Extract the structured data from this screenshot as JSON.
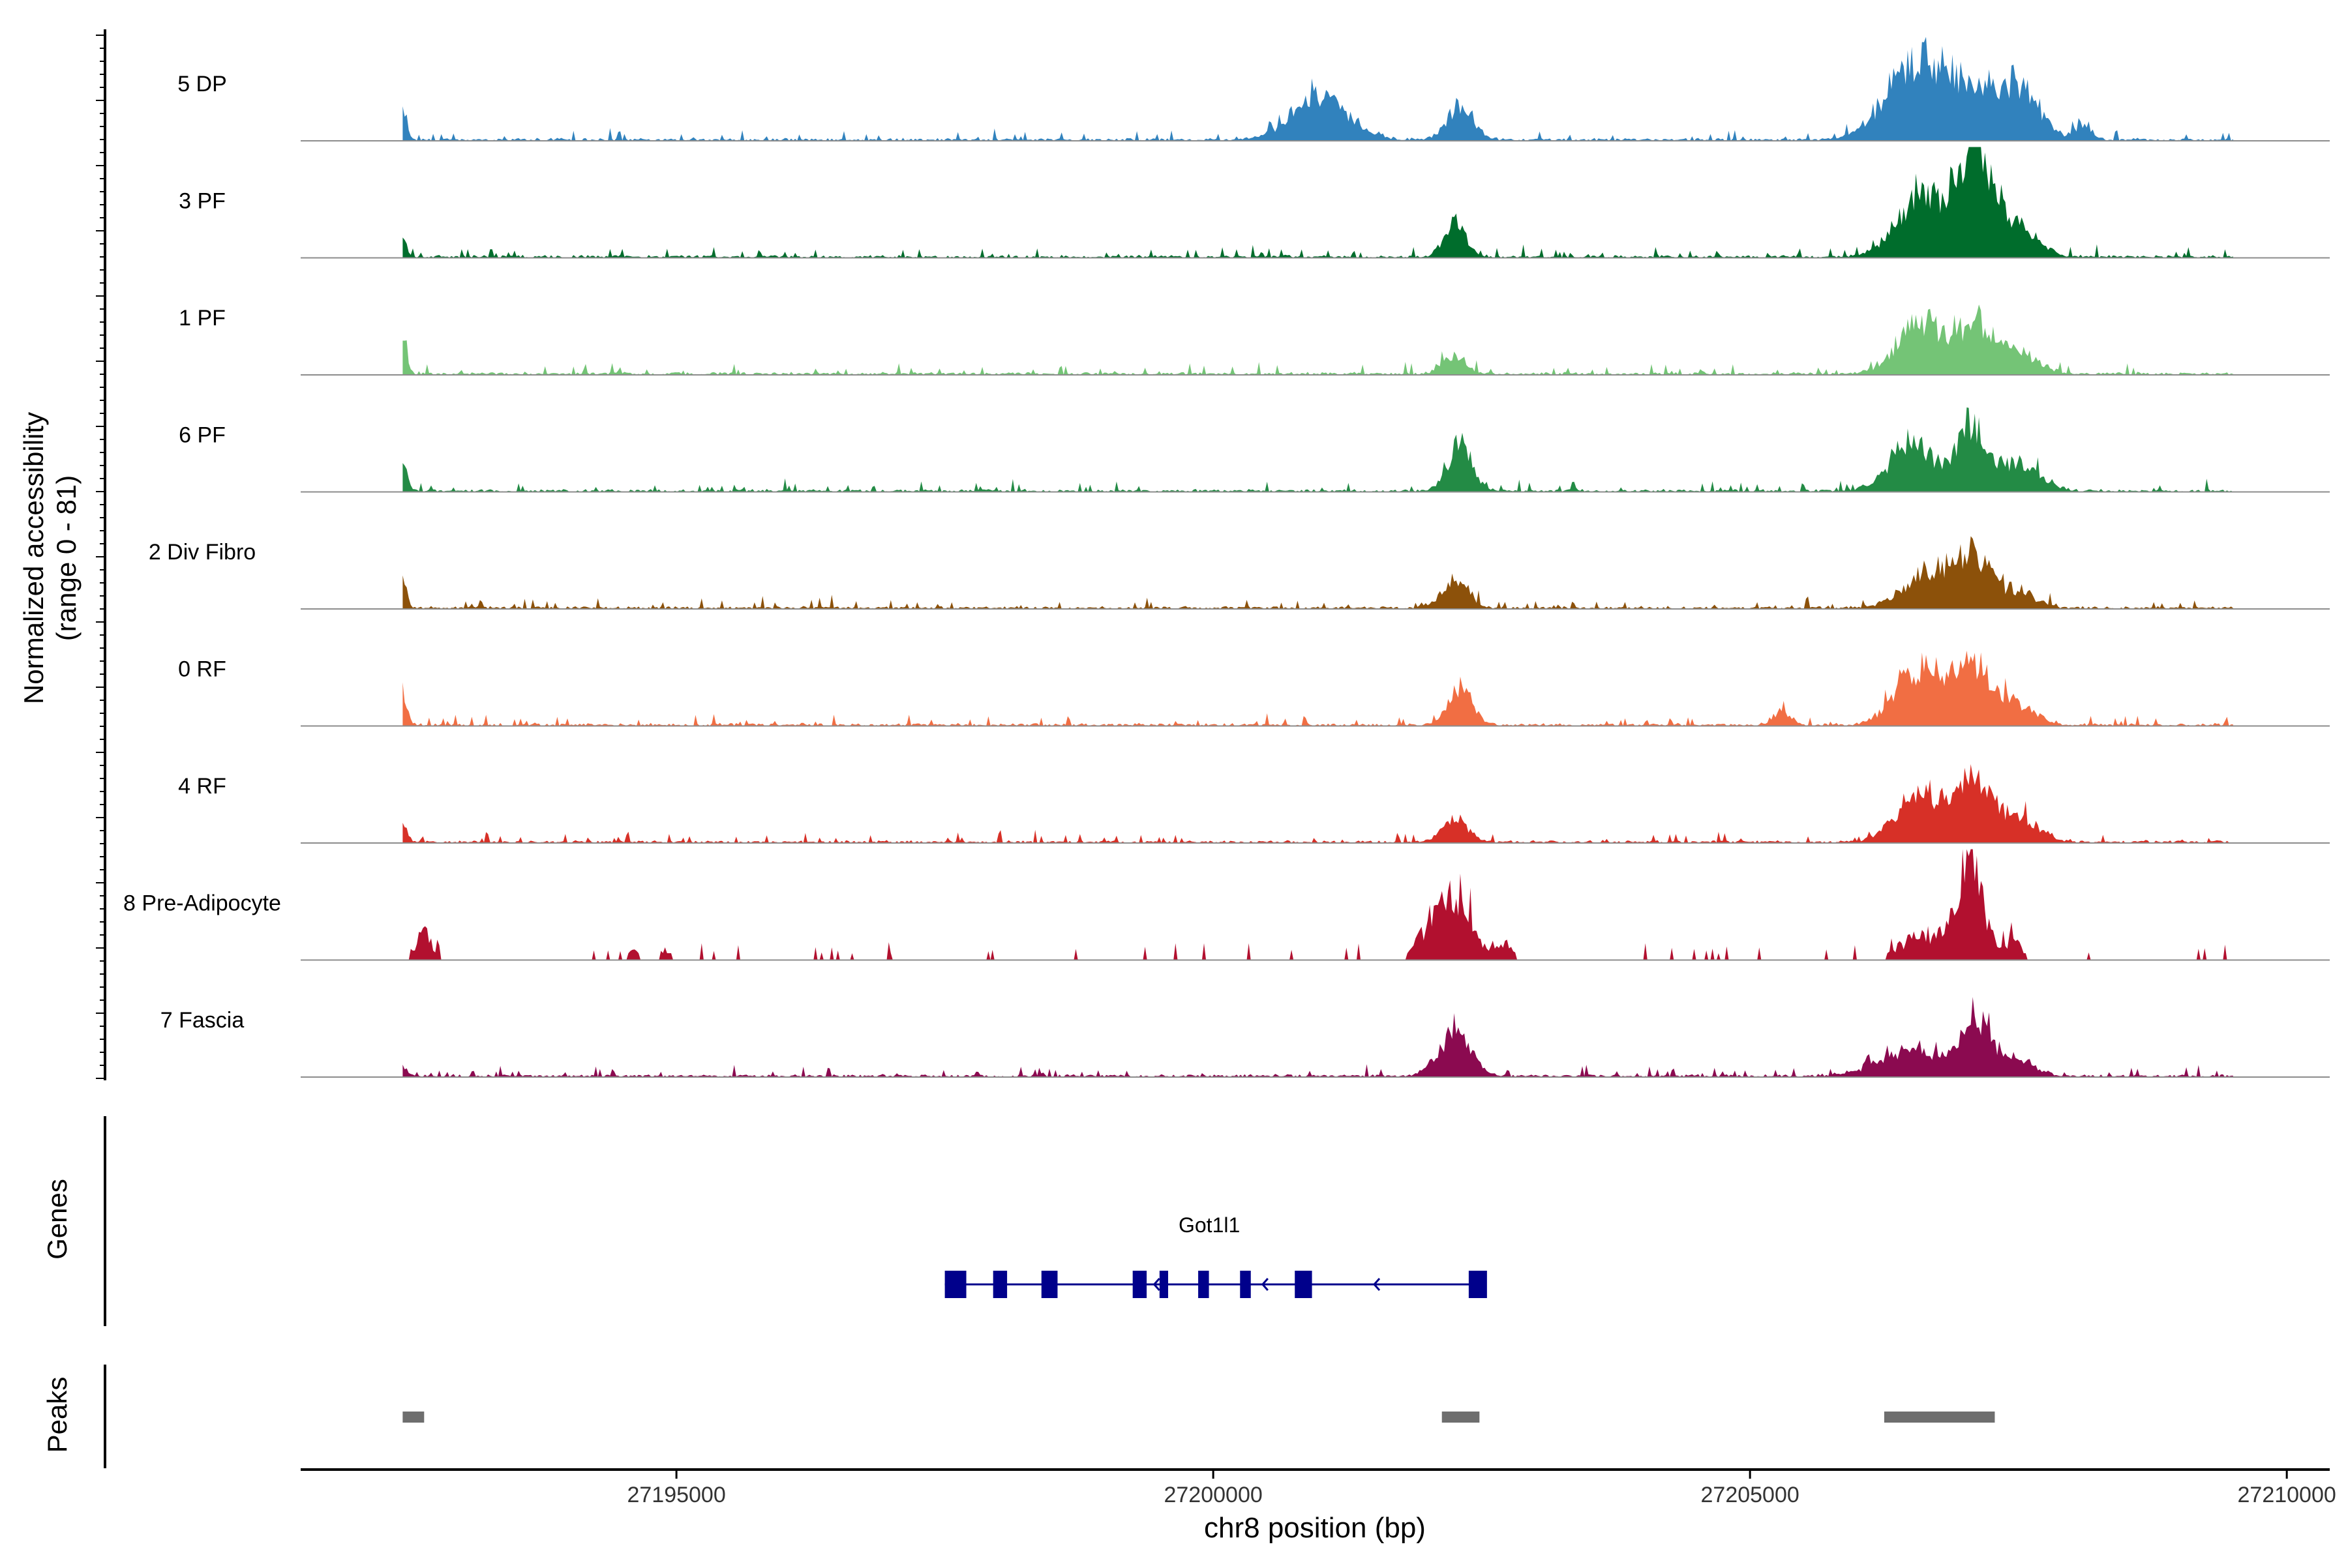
{
  "chart_data": {
    "type": "area",
    "title": "",
    "xlabel": "chr8 position (bp)",
    "ylabel_line1": "Normalized accessibility",
    "ylabel_line2": "(range 0 - 81)",
    "ylim": [
      0,
      81
    ],
    "xlim": [
      27191500,
      27210400
    ],
    "x_ticks": [
      27195000,
      27200000,
      27205000,
      27210000
    ],
    "x_tick_labels": [
      "27195000",
      "27200000",
      "27205000",
      "27210000"
    ],
    "genes_label": "Genes",
    "peaks_label": "Peaks",
    "tracks": [
      {
        "name": "5 DP",
        "color": "#3182bd",
        "sharp": false,
        "peaks": [
          [
            27192450,
            22,
            40
          ],
          [
            27201000,
            32,
            260
          ],
          [
            27202300,
            25,
            120
          ],
          [
            27206500,
            48,
            260
          ],
          [
            27207000,
            36,
            300
          ],
          [
            27207500,
            32,
            200
          ],
          [
            27208100,
            12,
            70
          ]
        ]
      },
      {
        "name": "3 PF",
        "color": "#006d2c",
        "sharp": false,
        "peaks": [
          [
            27192450,
            12,
            40
          ],
          [
            27202250,
            25,
            100
          ],
          [
            27206600,
            48,
            220
          ],
          [
            27207100,
            72,
            160
          ],
          [
            27207500,
            22,
            180
          ]
        ]
      },
      {
        "name": "1 PF",
        "color": "#74c476",
        "sharp": false,
        "peaks": [
          [
            27192450,
            24,
            40
          ],
          [
            27202250,
            14,
            100
          ],
          [
            27206600,
            38,
            220
          ],
          [
            27207100,
            35,
            150
          ],
          [
            27207500,
            16,
            180
          ]
        ]
      },
      {
        "name": "6 PF",
        "color": "#238b45",
        "sharp": false,
        "peaks": [
          [
            27192450,
            20,
            40
          ],
          [
            27202300,
            35,
            110
          ],
          [
            27206500,
            35,
            200
          ],
          [
            27207050,
            45,
            140
          ],
          [
            27207500,
            20,
            200
          ]
        ]
      },
      {
        "name": "2 Div Fibro",
        "color": "#8c510a",
        "sharp": false,
        "peaks": [
          [
            27192450,
            20,
            40
          ],
          [
            27202250,
            22,
            120
          ],
          [
            27206700,
            28,
            240
          ],
          [
            27207100,
            32,
            150
          ],
          [
            27207500,
            12,
            150
          ]
        ]
      },
      {
        "name": "0 RF",
        "color": "#f16e43",
        "sharp": false,
        "peaks": [
          [
            27192450,
            22,
            40
          ],
          [
            27202300,
            28,
            110
          ],
          [
            27205300,
            10,
            80
          ],
          [
            27206600,
            42,
            220
          ],
          [
            27207100,
            38,
            180
          ],
          [
            27207500,
            12,
            180
          ]
        ]
      },
      {
        "name": "4 RF",
        "color": "#d73027",
        "sharp": false,
        "peaks": [
          [
            27192450,
            18,
            40
          ],
          [
            27202250,
            16,
            120
          ],
          [
            27206600,
            36,
            220
          ],
          [
            27207100,
            45,
            150
          ],
          [
            27207500,
            18,
            180
          ]
        ]
      },
      {
        "name": "8 Pre-Adipocyte",
        "color": "#b2102f",
        "sharp": true,
        "peaks": [
          [
            27192650,
            22,
            70
          ],
          [
            27194600,
            8,
            60
          ],
          [
            27194900,
            8,
            60
          ],
          [
            27202200,
            60,
            180
          ],
          [
            27202700,
            15,
            80
          ],
          [
            27206600,
            20,
            200
          ],
          [
            27207050,
            75,
            130
          ],
          [
            27207450,
            15,
            80
          ]
        ]
      },
      {
        "name": "7 Fascia",
        "color": "#8b0a50",
        "sharp": false,
        "peaks": [
          [
            27192450,
            8,
            40
          ],
          [
            27202250,
            32,
            150
          ],
          [
            27206500,
            18,
            300
          ],
          [
            27207100,
            40,
            150
          ],
          [
            27207500,
            12,
            150
          ]
        ]
      }
    ],
    "gene": {
      "name": "Got1l1",
      "strand": "-",
      "start": 27197500,
      "end": 27202500,
      "exons": [
        [
          27197500,
          27197700
        ],
        [
          27197950,
          27198080
        ],
        [
          27198400,
          27198550
        ],
        [
          27199250,
          27199380
        ],
        [
          27199500,
          27199580
        ],
        [
          27199860,
          27199960
        ],
        [
          27200250,
          27200350
        ],
        [
          27200760,
          27200920
        ],
        [
          27202380,
          27202550
        ]
      ],
      "arrows": [
        27199450,
        27200460,
        27201500
      ]
    },
    "peaks_track": [
      [
        27192450,
        27192650
      ],
      [
        27202130,
        27202480
      ],
      [
        27206250,
        27207280
      ]
    ]
  }
}
